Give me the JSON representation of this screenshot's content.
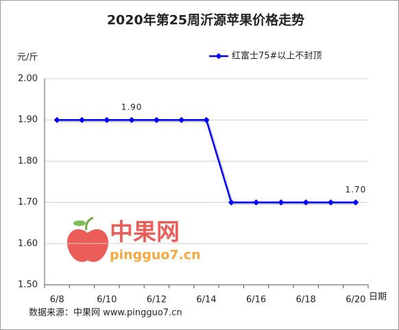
{
  "chart_data": {
    "type": "line",
    "title": "2020年第25周沂源苹果价格走势",
    "y_label": "元/斤",
    "x_label": "日期",
    "categories": [
      "6/8",
      null,
      "6/10",
      null,
      "6/12",
      null,
      "6/14",
      null,
      "6/16",
      null,
      "6/18",
      null,
      "6/20"
    ],
    "series": [
      {
        "name": "红富士75#以上不封顶",
        "color": "#0000ff",
        "values": [
          1.9,
          1.9,
          1.9,
          1.9,
          1.9,
          1.9,
          1.9,
          1.7,
          1.7,
          1.7,
          1.7,
          1.7,
          1.7
        ],
        "value_labels": [
          null,
          null,
          null,
          "1.90",
          null,
          null,
          null,
          null,
          null,
          null,
          null,
          null,
          "1.70"
        ]
      }
    ],
    "ylim": [
      1.5,
      2.0
    ],
    "yticks": [
      {
        "value": 1.5,
        "label": "1.50"
      },
      {
        "value": 1.6,
        "label": "1.60"
      },
      {
        "value": 1.7,
        "label": "1.70"
      },
      {
        "value": 1.8,
        "label": "1.80"
      },
      {
        "value": 1.9,
        "label": "1.90"
      },
      {
        "value": 2.0,
        "label": "2.00"
      }
    ],
    "grid": true,
    "legend": "top-right",
    "watermark": {
      "name": "中果网",
      "url": "pingguo7.cn"
    },
    "source": "数据来源：中果网 www.pingguo7.cn"
  }
}
